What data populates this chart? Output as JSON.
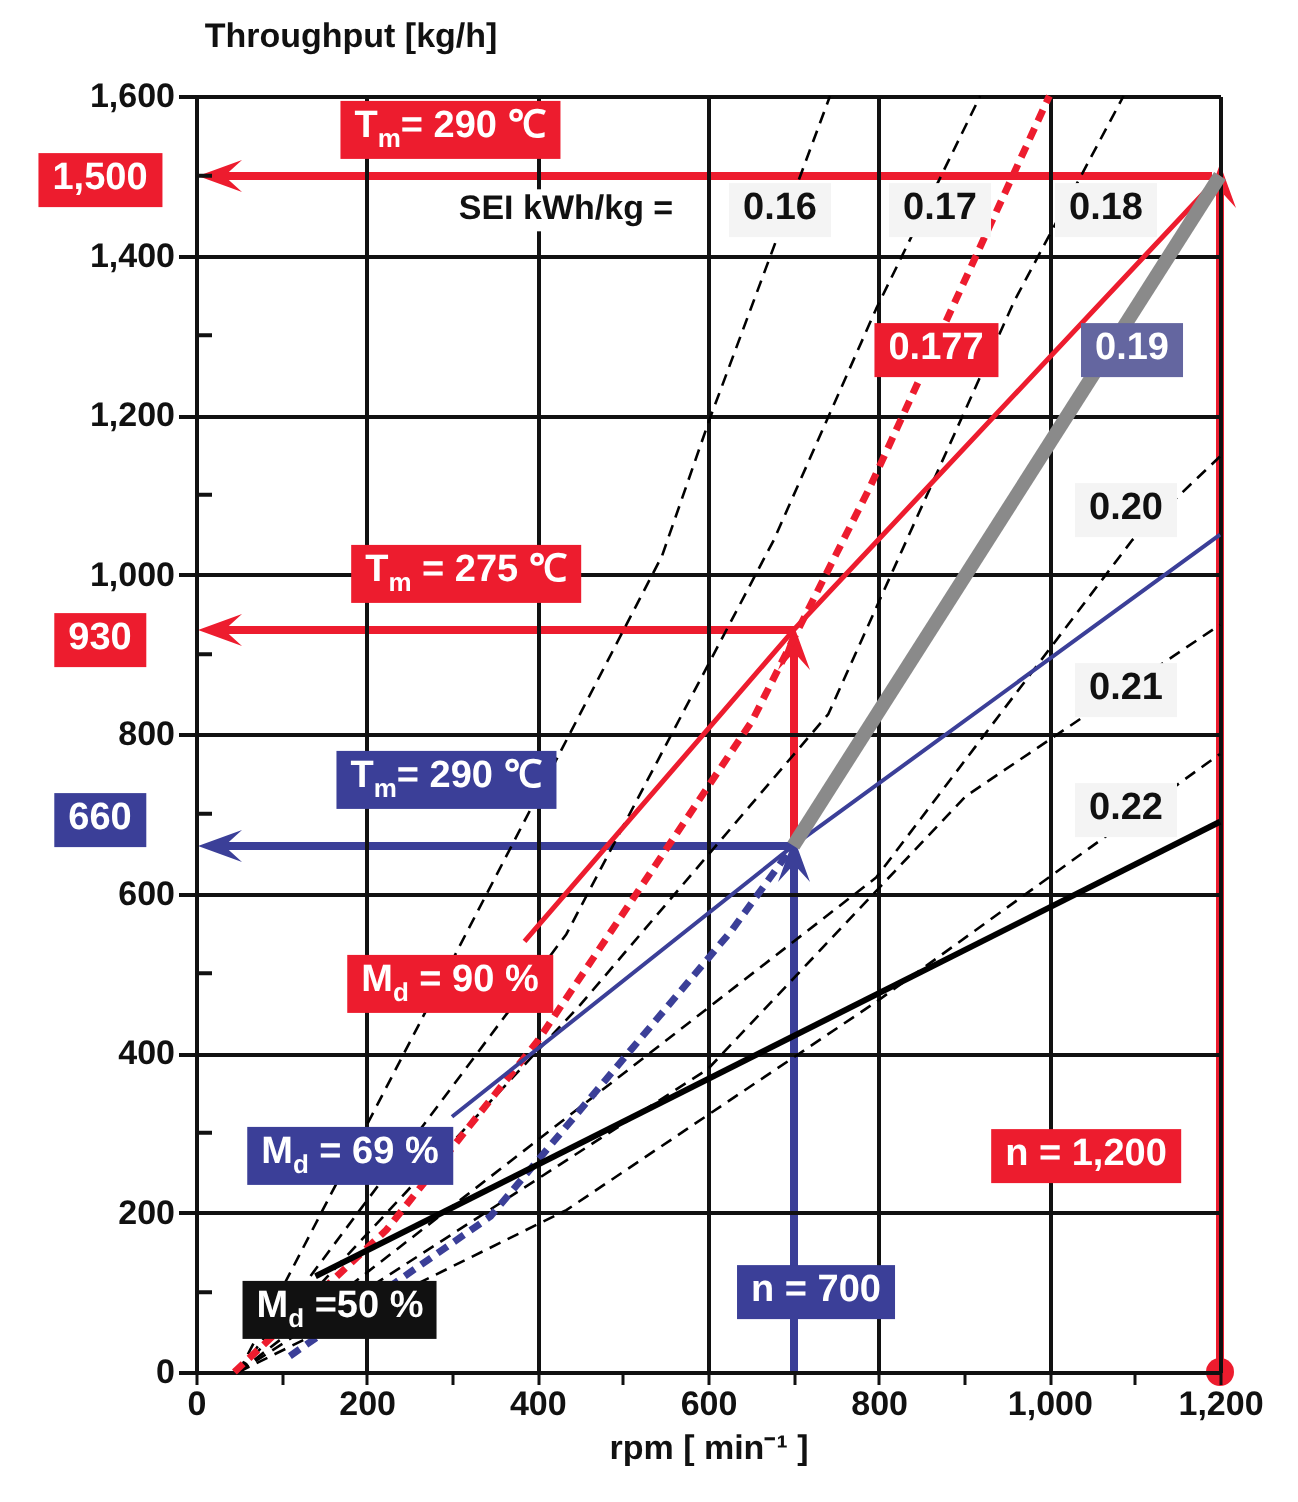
{
  "chart_data": {
    "type": "line",
    "xlabel": "rpm [ min⁻¹ ]",
    "ylabel": "Throughput [kg/h]",
    "xlim": [
      0,
      1200
    ],
    "ylim": [
      0,
      1600
    ],
    "xticks": [
      0,
      {
        "value": 100,
        "label": null
      },
      {
        "value": 200,
        "label": "200"
      },
      {
        "value": 300,
        "label": null
      },
      {
        "value": 400,
        "label": "400"
      },
      {
        "value": 500,
        "label": null
      },
      {
        "value": 600,
        "label": "600"
      },
      {
        "value": 700,
        "label": null
      },
      {
        "value": 800,
        "label": "800"
      },
      {
        "value": 900,
        "label": null
      },
      {
        "value": 1000,
        "label": "1,000"
      },
      {
        "value": 1100,
        "label": null
      },
      {
        "value": 1200,
        "label": "1,200"
      }
    ],
    "yticks": [
      0,
      {
        "value": 100,
        "label": null
      },
      {
        "value": 200,
        "label": "200"
      },
      {
        "value": 300,
        "label": null
      },
      {
        "value": 400,
        "label": "400"
      },
      {
        "value": 500,
        "label": null
      },
      {
        "value": 600,
        "label": "600"
      },
      {
        "value": 700,
        "label": null
      },
      {
        "value": 800,
        "label": "800"
      },
      {
        "value": 900,
        "label": null
      },
      {
        "value": 1000,
        "label": "1,000"
      },
      {
        "value": 1100,
        "label": null
      },
      {
        "value": 1200,
        "label": "1,200"
      },
      {
        "value": 1300,
        "label": null
      },
      {
        "value": 1400,
        "label": "1,400"
      },
      {
        "value": 1500,
        "label": null
      },
      {
        "value": 1600,
        "label": "1,600"
      }
    ],
    "grid": true,
    "series": [
      {
        "color": "#000000",
        "line_style": "dashed",
        "x": [
          50,
          546,
          602,
          743
        ],
        "values": [
          0,
          1023,
          1195,
          1600
        ]
      },
      {
        "color": "#000000",
        "line_style": "dashed",
        "x": [
          50,
          434,
          677,
          797,
          919
        ],
        "values": [
          0,
          549,
          1043,
          1333,
          1600
        ]
      },
      {
        "color": "#000000",
        "line_style": "dashed",
        "x": [
          50,
          450,
          741,
          959,
          1087
        ],
        "values": [
          0,
          460,
          825,
          1343,
          1600
        ]
      },
      {
        "color": "#000000",
        "line_style": "dashed",
        "x": [
          50,
          797,
          1097,
          1200
        ],
        "values": [
          0,
          620,
          1043,
          1148
        ]
      },
      {
        "color": "#000000",
        "line_style": "dashed",
        "x": [
          50,
          600,
          902,
          1200
        ],
        "values": [
          0,
          380,
          722,
          937
        ]
      },
      {
        "color": "#000000",
        "line_style": "dashed",
        "x": [
          50,
          434,
          797,
          1200
        ],
        "values": [
          0,
          203,
          464,
          775
        ]
      },
      {
        "color": "#ed1c2e",
        "line_style": "dashed",
        "x": [
          45,
          223,
          401,
          652,
          790,
          1000
        ],
        "values": [
          0,
          178,
          416,
          817,
          1110,
          1600
        ]
      },
      {
        "color": "#3b3f98",
        "line_style": "dashed",
        "x": [
          110,
          345,
          628,
          700
        ],
        "values": [
          20,
          195,
          554,
          660
        ]
      },
      {
        "color": "#000000",
        "x": [
          140,
          1200
        ],
        "values": [
          120,
          690
        ]
      },
      {
        "color": "#3b3f98",
        "x": [
          300,
          700,
          1200
        ],
        "values": [
          320,
          660,
          1050
        ]
      },
      {
        "color": "#ed1c2e",
        "x": [
          385,
          700,
          1200
        ],
        "values": [
          540,
          930,
          1500
        ]
      },
      {
        "color": "#8a8a8a",
        "x": [
          700,
          1200
        ],
        "values": [
          660,
          1500
        ]
      }
    ],
    "annotations": [
      "T$_{m}$= 290 ℃",
      "1,500",
      "SEI kWh/kg =",
      "0.16",
      "0.17",
      "0.18",
      "0.177",
      "0.19",
      "0.20",
      "0.21",
      "0.22",
      "T$_{m}$ = 275 ℃",
      "930",
      "T$_{m}$= 290 ℃",
      "660",
      "M$_{d}$ = 90 %",
      "M$_{d}$ = 69 %",
      "M$_{d}$ =50 %",
      "n = 700",
      "n = 1,200"
    ]
  }
}
